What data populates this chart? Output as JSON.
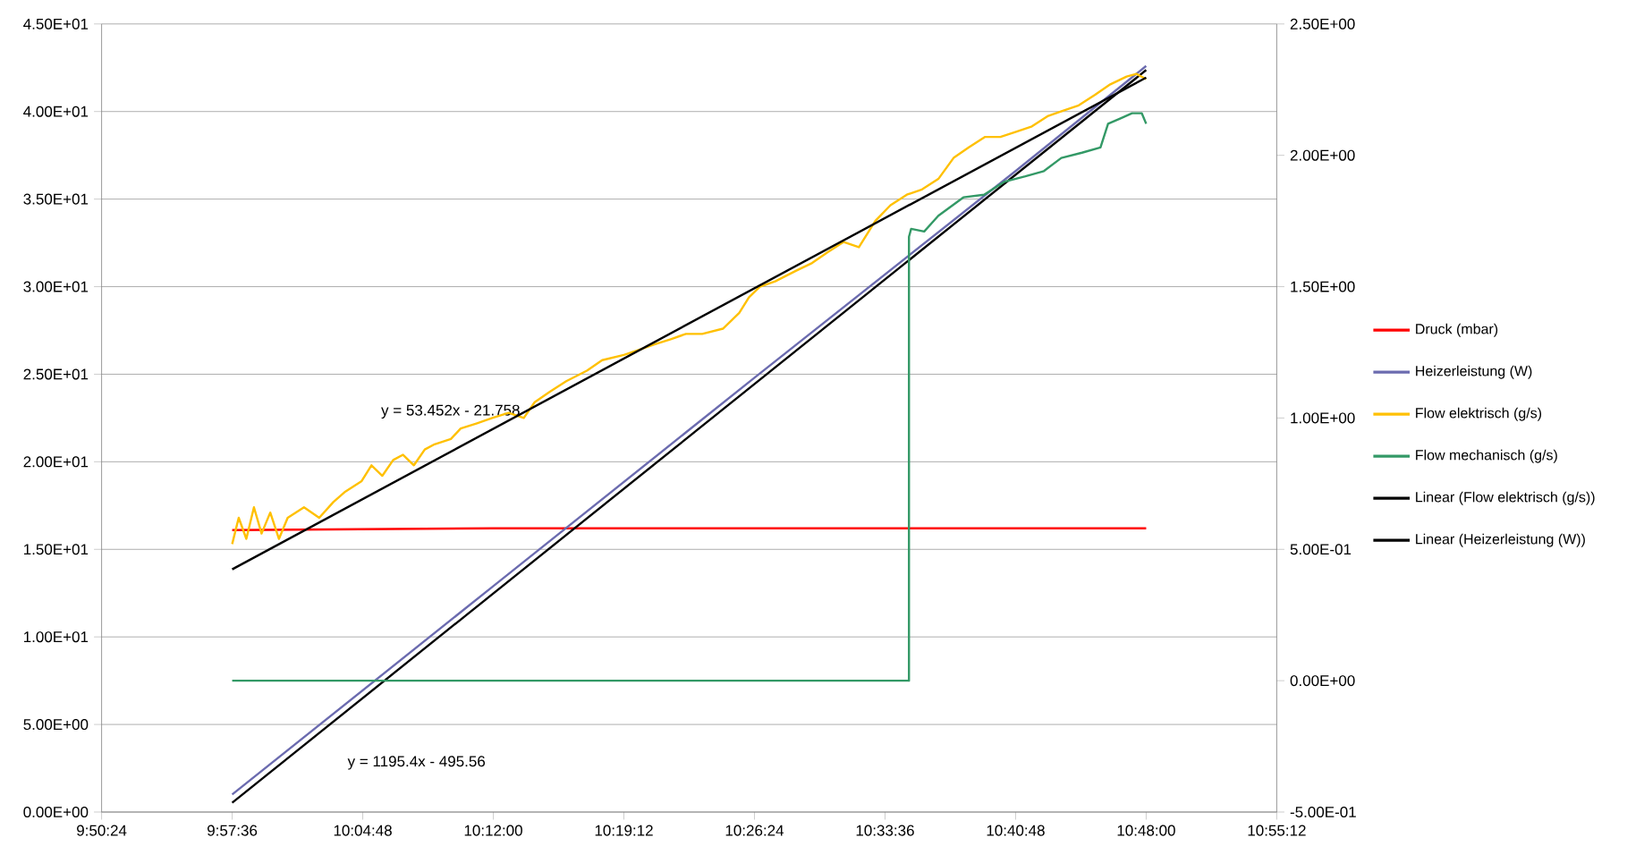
{
  "chart_data": {
    "type": "line",
    "xlim": [
      9.84,
      10.92
    ],
    "ylim": [
      0,
      45
    ],
    "y2lim": [
      -0.5,
      2.5
    ],
    "xticks": [
      {
        "value": 9.84,
        "label": "9:50:24"
      },
      {
        "value": 9.96,
        "label": "9:57:36"
      },
      {
        "value": 10.08,
        "label": "10:04:48"
      },
      {
        "value": 10.2,
        "label": "10:12:00"
      },
      {
        "value": 10.32,
        "label": "10:19:12"
      },
      {
        "value": 10.44,
        "label": "10:26:24"
      },
      {
        "value": 10.56,
        "label": "10:33:36"
      },
      {
        "value": 10.68,
        "label": "10:40:48"
      },
      {
        "value": 10.8,
        "label": "10:48:00"
      },
      {
        "value": 10.92,
        "label": "10:55:12"
      }
    ],
    "yticks": [
      {
        "value": 0,
        "label": "0.00E+00"
      },
      {
        "value": 5,
        "label": "5.00E+00"
      },
      {
        "value": 10,
        "label": "1.00E+01"
      },
      {
        "value": 15,
        "label": "1.50E+01"
      },
      {
        "value": 20,
        "label": "2.00E+01"
      },
      {
        "value": 25,
        "label": "2.50E+01"
      },
      {
        "value": 30,
        "label": "3.00E+01"
      },
      {
        "value": 35,
        "label": "3.50E+01"
      },
      {
        "value": 40,
        "label": "4.00E+01"
      },
      {
        "value": 45,
        "label": "4.50E+01"
      }
    ],
    "y2ticks": [
      {
        "value": -0.5,
        "label": "-5.00E-01"
      },
      {
        "value": 0,
        "label": "0.00E+00"
      },
      {
        "value": 0.5,
        "label": "5.00E-01"
      },
      {
        "value": 1,
        "label": "1.00E+00"
      },
      {
        "value": 1.5,
        "label": "1.50E+00"
      },
      {
        "value": 2,
        "label": "2.00E+00"
      },
      {
        "value": 2.5,
        "label": "2.50E+00"
      }
    ],
    "grid": "y",
    "legend": "right",
    "marker": "none",
    "line_style": "solid",
    "annotations": [
      "y = 53.452x - 21.758",
      "y = 1195.4x - 495.56"
    ],
    "series": [
      {
        "name": "Druck (mbar)",
        "color": "#ff0000",
        "x": [
          9.96,
          10.2,
          10.44,
          10.68,
          10.8
        ],
        "values": [
          16.1,
          16.2,
          16.2,
          16.2,
          16.2
        ]
      },
      {
        "name": "Heizerleistung (W)",
        "color": "#6b6baf",
        "x": [
          9.96,
          10.2,
          10.44,
          10.68,
          10.8
        ],
        "values": [
          1.0,
          12.9,
          24.8,
          36.6,
          42.6
        ]
      },
      {
        "name": "Flow elektrisch (g/s)",
        "color": "#ffc000",
        "axis": "y2",
        "x": [
          9.96,
          9.966,
          9.973,
          9.98,
          9.987,
          9.995,
          10.003,
          10.011,
          10.026,
          10.04,
          10.053,
          10.064,
          10.079,
          10.088,
          10.098,
          10.108,
          10.117,
          10.127,
          10.137,
          10.146,
          10.161,
          10.17,
          10.185,
          10.199,
          10.214,
          10.228,
          10.238,
          10.252,
          10.267,
          10.286,
          10.3,
          10.32,
          10.334,
          10.348,
          10.363,
          10.377,
          10.392,
          10.411,
          10.426,
          10.435,
          10.445,
          10.459,
          10.478,
          10.493,
          10.507,
          10.522,
          10.536,
          10.551,
          10.565,
          10.58,
          10.594,
          10.609,
          10.623,
          10.637,
          10.652,
          10.666,
          10.681,
          10.695,
          10.71,
          10.724,
          10.738,
          10.753,
          10.767,
          10.782,
          10.791,
          10.8
        ],
        "values": [
          0.52,
          0.62,
          0.54,
          0.66,
          0.56,
          0.64,
          0.54,
          0.62,
          0.66,
          0.62,
          0.68,
          0.72,
          0.76,
          0.82,
          0.78,
          0.84,
          0.86,
          0.82,
          0.88,
          0.9,
          0.92,
          0.96,
          0.98,
          1.0,
          1.02,
          1.0,
          1.06,
          1.1,
          1.14,
          1.18,
          1.22,
          1.24,
          1.26,
          1.28,
          1.3,
          1.32,
          1.32,
          1.34,
          1.4,
          1.46,
          1.5,
          1.52,
          1.56,
          1.59,
          1.63,
          1.67,
          1.65,
          1.75,
          1.81,
          1.85,
          1.87,
          1.91,
          1.99,
          2.03,
          2.07,
          2.07,
          2.09,
          2.11,
          2.15,
          2.17,
          2.19,
          2.23,
          2.27,
          2.3,
          2.31,
          2.29
        ]
      },
      {
        "name": "Flow mechanisch (g/s)",
        "color": "#339966",
        "axis": "y2",
        "x": [
          9.96,
          10.582,
          10.582,
          10.584,
          10.596,
          10.609,
          10.632,
          10.651,
          10.67,
          10.689,
          10.706,
          10.722,
          10.741,
          10.758,
          10.765,
          10.776,
          10.787,
          10.796,
          10.8
        ],
        "values": [
          0,
          0,
          1.69,
          1.72,
          1.71,
          1.77,
          1.84,
          1.85,
          1.9,
          1.92,
          1.94,
          1.99,
          2.01,
          2.03,
          2.12,
          2.14,
          2.16,
          2.16,
          2.12
        ]
      },
      {
        "name": "Linear (Flow elektrisch (g/s))",
        "color": "#000000",
        "axis": "y2",
        "x": [
          9.96,
          10.8
        ],
        "values": [
          0.424,
          2.296
        ]
      },
      {
        "name": "Linear (Heizerleistung (W))",
        "color": "#000000",
        "x": [
          9.96,
          10.8
        ],
        "values": [
          0.53,
          42.37
        ]
      }
    ]
  }
}
